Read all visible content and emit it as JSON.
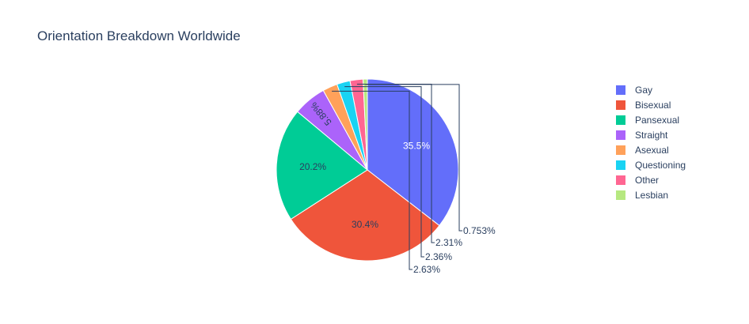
{
  "chart_data": {
    "type": "pie",
    "title": "Orientation Breakdown Worldwide",
    "legend_position": "right",
    "slices": [
      {
        "label": "Gay",
        "value": 35.5,
        "pct_label": "35.5%",
        "color": "#636efa",
        "text_color": "#ffffff",
        "label_position": "inside"
      },
      {
        "label": "Bisexual",
        "value": 30.4,
        "pct_label": "30.4%",
        "color": "#ef553b",
        "text_color": "#2a3f5f",
        "label_position": "inside"
      },
      {
        "label": "Pansexual",
        "value": 20.2,
        "pct_label": "20.2%",
        "color": "#00cc96",
        "text_color": "#2a3f5f",
        "label_position": "inside"
      },
      {
        "label": "Straight",
        "value": 5.88,
        "pct_label": "5.88%",
        "color": "#ab63fa",
        "text_color": "#2a3f5f",
        "label_position": "inside-rotated"
      },
      {
        "label": "Asexual",
        "value": 2.63,
        "pct_label": "2.63%",
        "color": "#ffa15a",
        "text_color": "#2a3f5f",
        "label_position": "outside"
      },
      {
        "label": "Questioning",
        "value": 2.36,
        "pct_label": "2.36%",
        "color": "#19d3f3",
        "text_color": "#2a3f5f",
        "label_position": "outside"
      },
      {
        "label": "Other",
        "value": 2.31,
        "pct_label": "2.31%",
        "color": "#ff6692",
        "text_color": "#2a3f5f",
        "label_position": "outside"
      },
      {
        "label": "Lesbian",
        "value": 0.753,
        "pct_label": "0.753%",
        "color": "#b6e880",
        "text_color": "#2a3f5f",
        "label_position": "outside"
      }
    ]
  }
}
